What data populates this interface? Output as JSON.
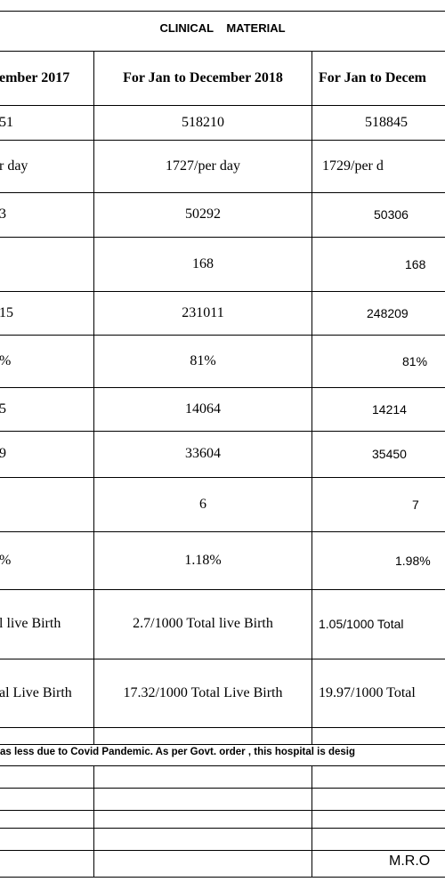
{
  "title": "CLINICAL    MATERIAL",
  "table": {
    "header": [
      "ember 2017",
      "For Jan to December 2018",
      "For Jan to Decem"
    ],
    "rows": [
      [
        "51",
        "518210",
        "518845"
      ],
      [
        "r day",
        "1727/per day",
        "1729/per d"
      ],
      [
        "3",
        "50292",
        "50306"
      ],
      [
        null,
        "168",
        "168"
      ],
      [
        "15",
        "231011",
        "248209"
      ],
      [
        "%",
        "81%",
        "81%"
      ],
      [
        "5",
        "14064",
        "14214"
      ],
      [
        "9",
        "33604",
        "35450"
      ],
      [
        null,
        "6",
        "7"
      ],
      [
        "%",
        "1.18%",
        "1.98%"
      ],
      [
        "l live Birth",
        "2.7/1000 Total live Birth",
        "1.05/1000 Total"
      ],
      [
        "al Live Birth",
        "17.32/1000 Total Live Birth",
        "19.97/1000 Total"
      ]
    ]
  },
  "note": "as less due to Covid Pandemic. As per Govt. order , this hospital is desig",
  "footer": "M.R.O"
}
